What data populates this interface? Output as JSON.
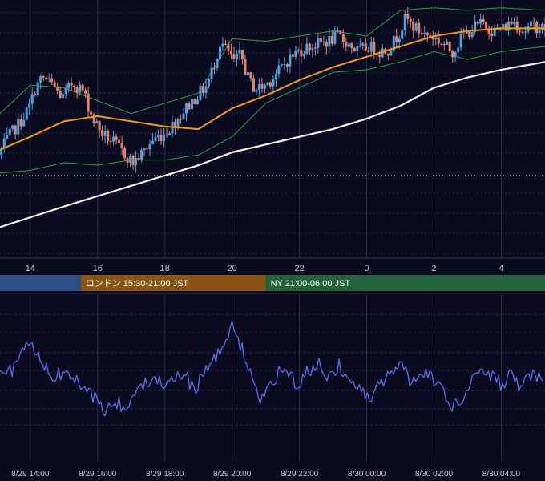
{
  "chart_data": [
    {
      "type": "candlestick",
      "title": "",
      "x_unit": "hours since 8/29 14:00 (JST)",
      "x_ticks": [
        {
          "x": 0,
          "label": "14"
        },
        {
          "x": 2,
          "label": "16"
        },
        {
          "x": 4,
          "label": "18"
        },
        {
          "x": 6,
          "label": "20"
        },
        {
          "x": 8,
          "label": "22"
        },
        {
          "x": 10,
          "label": "0"
        },
        {
          "x": 12,
          "label": "2"
        },
        {
          "x": 14,
          "label": "4"
        }
      ],
      "xlim": [
        -0.9,
        15.3
      ],
      "ylim": [
        0,
        100
      ],
      "grid": true,
      "price_path": [
        [
          -0.9,
          40
        ],
        [
          -0.6,
          47
        ],
        [
          -0.3,
          52
        ],
        [
          0.0,
          58
        ],
        [
          0.2,
          66
        ],
        [
          0.4,
          70
        ],
        [
          0.7,
          67
        ],
        [
          1.0,
          62
        ],
        [
          1.3,
          68
        ],
        [
          1.6,
          65
        ],
        [
          1.9,
          54
        ],
        [
          2.2,
          48
        ],
        [
          2.5,
          45
        ],
        [
          2.8,
          41
        ],
        [
          3.1,
          37
        ],
        [
          3.4,
          41
        ],
        [
          3.7,
          46
        ],
        [
          4.0,
          48
        ],
        [
          4.3,
          52
        ],
        [
          4.6,
          57
        ],
        [
          5.0,
          63
        ],
        [
          5.3,
          67
        ],
        [
          5.5,
          75
        ],
        [
          5.7,
          84
        ],
        [
          5.9,
          80
        ],
        [
          6.1,
          76
        ],
        [
          6.3,
          79
        ],
        [
          6.5,
          70
        ],
        [
          6.7,
          66
        ],
        [
          6.9,
          66
        ],
        [
          7.1,
          68
        ],
        [
          7.4,
          72
        ],
        [
          7.7,
          77
        ],
        [
          8.0,
          80
        ],
        [
          8.3,
          82
        ],
        [
          8.6,
          83
        ],
        [
          8.9,
          84
        ],
        [
          9.2,
          86
        ],
        [
          9.5,
          83
        ],
        [
          9.8,
          80
        ],
        [
          10.1,
          82
        ],
        [
          10.4,
          80
        ],
        [
          10.7,
          81
        ],
        [
          11.0,
          87
        ],
        [
          11.2,
          93
        ],
        [
          11.4,
          90
        ],
        [
          11.7,
          87
        ],
        [
          12.0,
          86
        ],
        [
          12.3,
          83
        ],
        [
          12.6,
          80
        ],
        [
          12.9,
          86
        ],
        [
          13.2,
          89
        ],
        [
          13.5,
          91
        ],
        [
          13.8,
          88
        ],
        [
          14.1,
          89
        ],
        [
          14.4,
          92
        ],
        [
          14.7,
          88
        ],
        [
          15.0,
          90
        ],
        [
          15.3,
          89
        ]
      ],
      "series": [
        {
          "name": "",
          "type": "moving-average",
          "color": "#f39c12",
          "points": [
            [
              -0.9,
              42
            ],
            [
              0.0,
              47
            ],
            [
              1.0,
              53
            ],
            [
              2.0,
              55
            ],
            [
              3.0,
              53
            ],
            [
              4.0,
              51
            ],
            [
              5.0,
              50
            ],
            [
              6.0,
              58
            ],
            [
              7.0,
              63
            ],
            [
              8.0,
              69
            ],
            [
              9.0,
              74
            ],
            [
              10.0,
              78
            ],
            [
              11.0,
              82
            ],
            [
              12.0,
              86
            ],
            [
              13.0,
              88
            ],
            [
              14.0,
              89
            ],
            [
              15.3,
              89
            ]
          ]
        },
        {
          "name": "",
          "type": "moving-average",
          "color": "#f2f2f2",
          "points": [
            [
              -0.9,
              12
            ],
            [
              1.0,
              20
            ],
            [
              3.0,
              28
            ],
            [
              5.0,
              36
            ],
            [
              6.0,
              41
            ],
            [
              7.0,
              44
            ],
            [
              8.0,
              47
            ],
            [
              9.0,
              50
            ],
            [
              10.0,
              54
            ],
            [
              11.0,
              59
            ],
            [
              12.0,
              66
            ],
            [
              13.0,
              70
            ],
            [
              14.0,
              73
            ],
            [
              15.3,
              76
            ]
          ]
        },
        {
          "name": "",
          "type": "bollinger-upper",
          "color": "#2ea043",
          "points": [
            [
              -0.9,
              56
            ],
            [
              0.0,
              67
            ],
            [
              1.0,
              66
            ],
            [
              2.0,
              61
            ],
            [
              3.0,
              56
            ],
            [
              4.0,
              60
            ],
            [
              5.0,
              64
            ],
            [
              6.0,
              85
            ],
            [
              7.0,
              84
            ],
            [
              8.0,
              86
            ],
            [
              9.0,
              88
            ],
            [
              10.0,
              86
            ],
            [
              11.0,
              96
            ],
            [
              12.0,
              97
            ],
            [
              13.0,
              96
            ],
            [
              14.0,
              97
            ],
            [
              15.3,
              96
            ]
          ]
        },
        {
          "name": "",
          "type": "bollinger-lower",
          "color": "#2ea043",
          "points": [
            [
              -0.9,
              33
            ],
            [
              0.0,
              34
            ],
            [
              1.0,
              37
            ],
            [
              2.0,
              36
            ],
            [
              3.0,
              38
            ],
            [
              4.0,
              38
            ],
            [
              5.0,
              40
            ],
            [
              6.0,
              47
            ],
            [
              7.0,
              60
            ],
            [
              8.0,
              66
            ],
            [
              9.0,
              72
            ],
            [
              10.0,
              73
            ],
            [
              11.0,
              76
            ],
            [
              12.0,
              80
            ],
            [
              13.0,
              77
            ],
            [
              14.0,
              80
            ],
            [
              15.3,
              82
            ]
          ]
        }
      ],
      "reference_line": {
        "y": 32,
        "style": "dotted",
        "color": "#ffffff"
      }
    },
    {
      "type": "line",
      "title": "",
      "x_unit": "hours since 8/29 14:00 (JST)",
      "x_ticks": [
        {
          "x": 0,
          "label": "8/29 14:00"
        },
        {
          "x": 2,
          "label": "8/29 16:00"
        },
        {
          "x": 4,
          "label": "8/29 18:00"
        },
        {
          "x": 6,
          "label": "8/29 20:00"
        },
        {
          "x": 8,
          "label": "8/29 22:00"
        },
        {
          "x": 10,
          "label": "8/30 00:00"
        },
        {
          "x": 12,
          "label": "8/30 02:00"
        },
        {
          "x": 14,
          "label": "8/30 04:00"
        }
      ],
      "xlim": [
        -0.9,
        15.3
      ],
      "ylim": [
        0,
        100
      ],
      "grid": true,
      "series": [
        {
          "name": "",
          "color": "#5b6ee8",
          "anchors": [
            [
              -0.9,
              52
            ],
            [
              -0.5,
              55
            ],
            [
              -0.3,
              63
            ],
            [
              -0.1,
              73
            ],
            [
              0.3,
              60
            ],
            [
              0.7,
              50
            ],
            [
              1.1,
              55
            ],
            [
              1.5,
              44
            ],
            [
              1.9,
              38
            ],
            [
              2.2,
              30
            ],
            [
              2.5,
              36
            ],
            [
              2.8,
              32
            ],
            [
              3.1,
              38
            ],
            [
              3.4,
              48
            ],
            [
              3.7,
              52
            ],
            [
              4.0,
              47
            ],
            [
              4.3,
              50
            ],
            [
              4.6,
              52
            ],
            [
              4.9,
              42
            ],
            [
              5.2,
              55
            ],
            [
              5.5,
              62
            ],
            [
              5.8,
              72
            ],
            [
              6.0,
              80
            ],
            [
              6.3,
              68
            ],
            [
              6.5,
              56
            ],
            [
              6.8,
              36
            ],
            [
              7.1,
              42
            ],
            [
              7.4,
              55
            ],
            [
              7.7,
              50
            ],
            [
              8.0,
              47
            ],
            [
              8.3,
              55
            ],
            [
              8.6,
              58
            ],
            [
              8.9,
              50
            ],
            [
              9.2,
              58
            ],
            [
              9.5,
              48
            ],
            [
              9.8,
              42
            ],
            [
              10.1,
              38
            ],
            [
              10.4,
              48
            ],
            [
              10.7,
              52
            ],
            [
              11.0,
              58
            ],
            [
              11.3,
              48
            ],
            [
              11.6,
              55
            ],
            [
              11.9,
              52
            ],
            [
              12.2,
              45
            ],
            [
              12.5,
              32
            ],
            [
              12.8,
              36
            ],
            [
              13.1,
              48
            ],
            [
              13.4,
              55
            ],
            [
              13.7,
              52
            ],
            [
              14.0,
              46
            ],
            [
              14.3,
              52
            ],
            [
              14.6,
              44
            ],
            [
              14.9,
              52
            ],
            [
              15.3,
              52
            ]
          ]
        }
      ]
    }
  ],
  "sessions": [
    {
      "label": "",
      "color": "#2b4f86",
      "start_hour": -0.9,
      "end_hour": 1.5
    },
    {
      "label": "ロンドン 15:30-21:00 JST",
      "color": "#8a5512",
      "start_hour": 1.5,
      "end_hour": 7.0
    },
    {
      "label": "NY 21:00-06:00 JST",
      "color": "#22633c",
      "start_hour": 7.0,
      "end_hour": 15.3
    }
  ],
  "colors": {
    "background": "#0b0b1f",
    "grid": "#2a2a44",
    "candle_up": "#4fa3e0",
    "candle_down": "#e8846e",
    "axis_text": "#c8c8d4"
  }
}
